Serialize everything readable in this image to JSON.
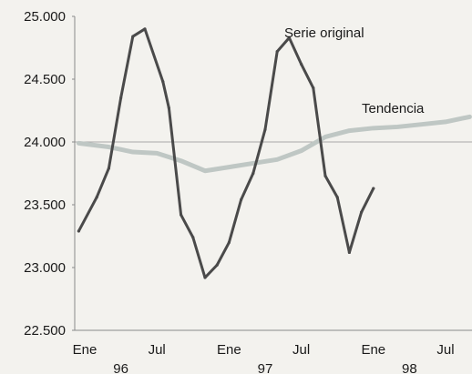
{
  "chart_data": {
    "type": "line",
    "title": "",
    "xlabel": "",
    "ylabel": "",
    "ylim": [
      22500,
      25000
    ],
    "y_ticks": [
      "25.000",
      "24.500",
      "24.000",
      "23.500",
      "23.000",
      "22.500"
    ],
    "y_tick_values": [
      25000,
      24500,
      24000,
      23500,
      23000,
      22500
    ],
    "grid": "horizontal at 24.000 only",
    "x_month_ticks": [
      {
        "label": "Ene",
        "month": 0
      },
      {
        "label": "Jul",
        "month": 6
      },
      {
        "label": "Ene",
        "month": 12
      },
      {
        "label": "Jul",
        "month": 18
      },
      {
        "label": "Ene",
        "month": 24
      },
      {
        "label": "Jul",
        "month": 30
      }
    ],
    "x_year_labels": [
      {
        "label": "96",
        "month": 3
      },
      {
        "label": "97",
        "month": 15
      },
      {
        "label": "98",
        "month": 27
      }
    ],
    "series": [
      {
        "name": "Serie original",
        "color": "#4a4a4a",
        "highlight_color": "#6a5aa8",
        "points": [
          [
            -0.5,
            23290
          ],
          [
            1,
            23560
          ],
          [
            2,
            23790
          ],
          [
            3,
            24350
          ],
          [
            4,
            24840
          ],
          [
            5,
            24900
          ],
          [
            6.5,
            24480
          ],
          [
            7,
            24270
          ],
          [
            8,
            23420
          ],
          [
            9,
            23240
          ],
          [
            10,
            22920
          ],
          [
            11,
            23020
          ],
          [
            12,
            23200
          ],
          [
            13,
            23540
          ],
          [
            14,
            23750
          ],
          [
            15,
            24100
          ],
          [
            16,
            24720
          ],
          [
            17,
            24830
          ],
          [
            18,
            24620
          ],
          [
            19,
            24430
          ],
          [
            20,
            23730
          ],
          [
            21,
            23560
          ],
          [
            22,
            23120
          ],
          [
            23,
            23440
          ],
          [
            24,
            23630
          ]
        ]
      },
      {
        "name": "Tendencia",
        "color": "#bfc7c4",
        "points": [
          [
            -0.5,
            23990
          ],
          [
            2,
            23960
          ],
          [
            4,
            23920
          ],
          [
            6,
            23910
          ],
          [
            8,
            23850
          ],
          [
            10,
            23770
          ],
          [
            12,
            23800
          ],
          [
            14,
            23830
          ],
          [
            16,
            23860
          ],
          [
            18,
            23930
          ],
          [
            20,
            24040
          ],
          [
            22,
            24090
          ],
          [
            24,
            24110
          ],
          [
            26,
            24120
          ],
          [
            28,
            24140
          ],
          [
            30,
            24160
          ],
          [
            32,
            24200
          ]
        ]
      }
    ]
  }
}
